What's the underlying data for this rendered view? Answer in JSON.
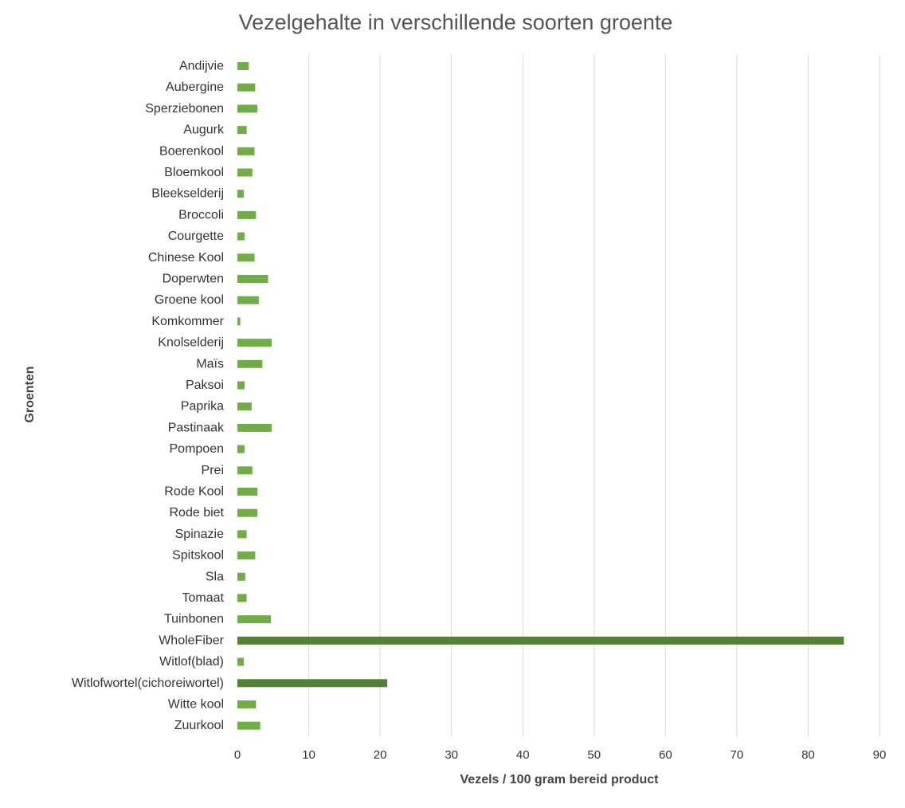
{
  "chart_data": {
    "type": "bar",
    "orientation": "horizontal",
    "title": "Vezelgehalte in verschillende soorten groente",
    "xlabel": "Vezels / 100 gram bereid product",
    "ylabel": "Groenten",
    "xlim": [
      0,
      90
    ],
    "x_ticks": [
      0,
      10,
      20,
      30,
      40,
      50,
      60,
      70,
      80,
      90
    ],
    "grid": "vertical",
    "legend": "none",
    "colors": {
      "default": "#70ad47",
      "highlight": "#548235"
    },
    "categories": [
      "Andijvie",
      "Aubergine",
      "Sperziebonen",
      "Augurk",
      "Boerenkool",
      "Bloemkool",
      "Bleekselderij",
      "Broccoli",
      "Courgette",
      "Chinese Kool",
      "Doperwten",
      "Groene kool",
      "Komkommer",
      "Knolselderij",
      "Maïs",
      "Paksoi",
      "Paprika",
      "Pastinaak",
      "Pompoen",
      "Prei",
      "Rode Kool",
      "Rode biet",
      "Spinazie",
      "Spitskool",
      "Sla",
      "Tomaat",
      "Tuinbonen",
      "WholeFiber",
      "Witlof(blad)",
      "Witlofwortel(cichoreiwortel)",
      "Witte kool",
      "Zuurkool"
    ],
    "values": [
      1.6,
      2.5,
      2.8,
      1.3,
      2.4,
      2.1,
      0.9,
      2.6,
      1.0,
      2.4,
      4.3,
      3.0,
      0.4,
      4.8,
      3.5,
      1.0,
      2.0,
      4.8,
      1.0,
      2.1,
      2.8,
      2.8,
      1.3,
      2.5,
      1.1,
      1.3,
      4.7,
      85,
      0.9,
      21,
      2.6,
      3.2
    ],
    "highlighted": [
      "WholeFiber",
      "Witlofwortel(cichoreiwortel)"
    ]
  }
}
